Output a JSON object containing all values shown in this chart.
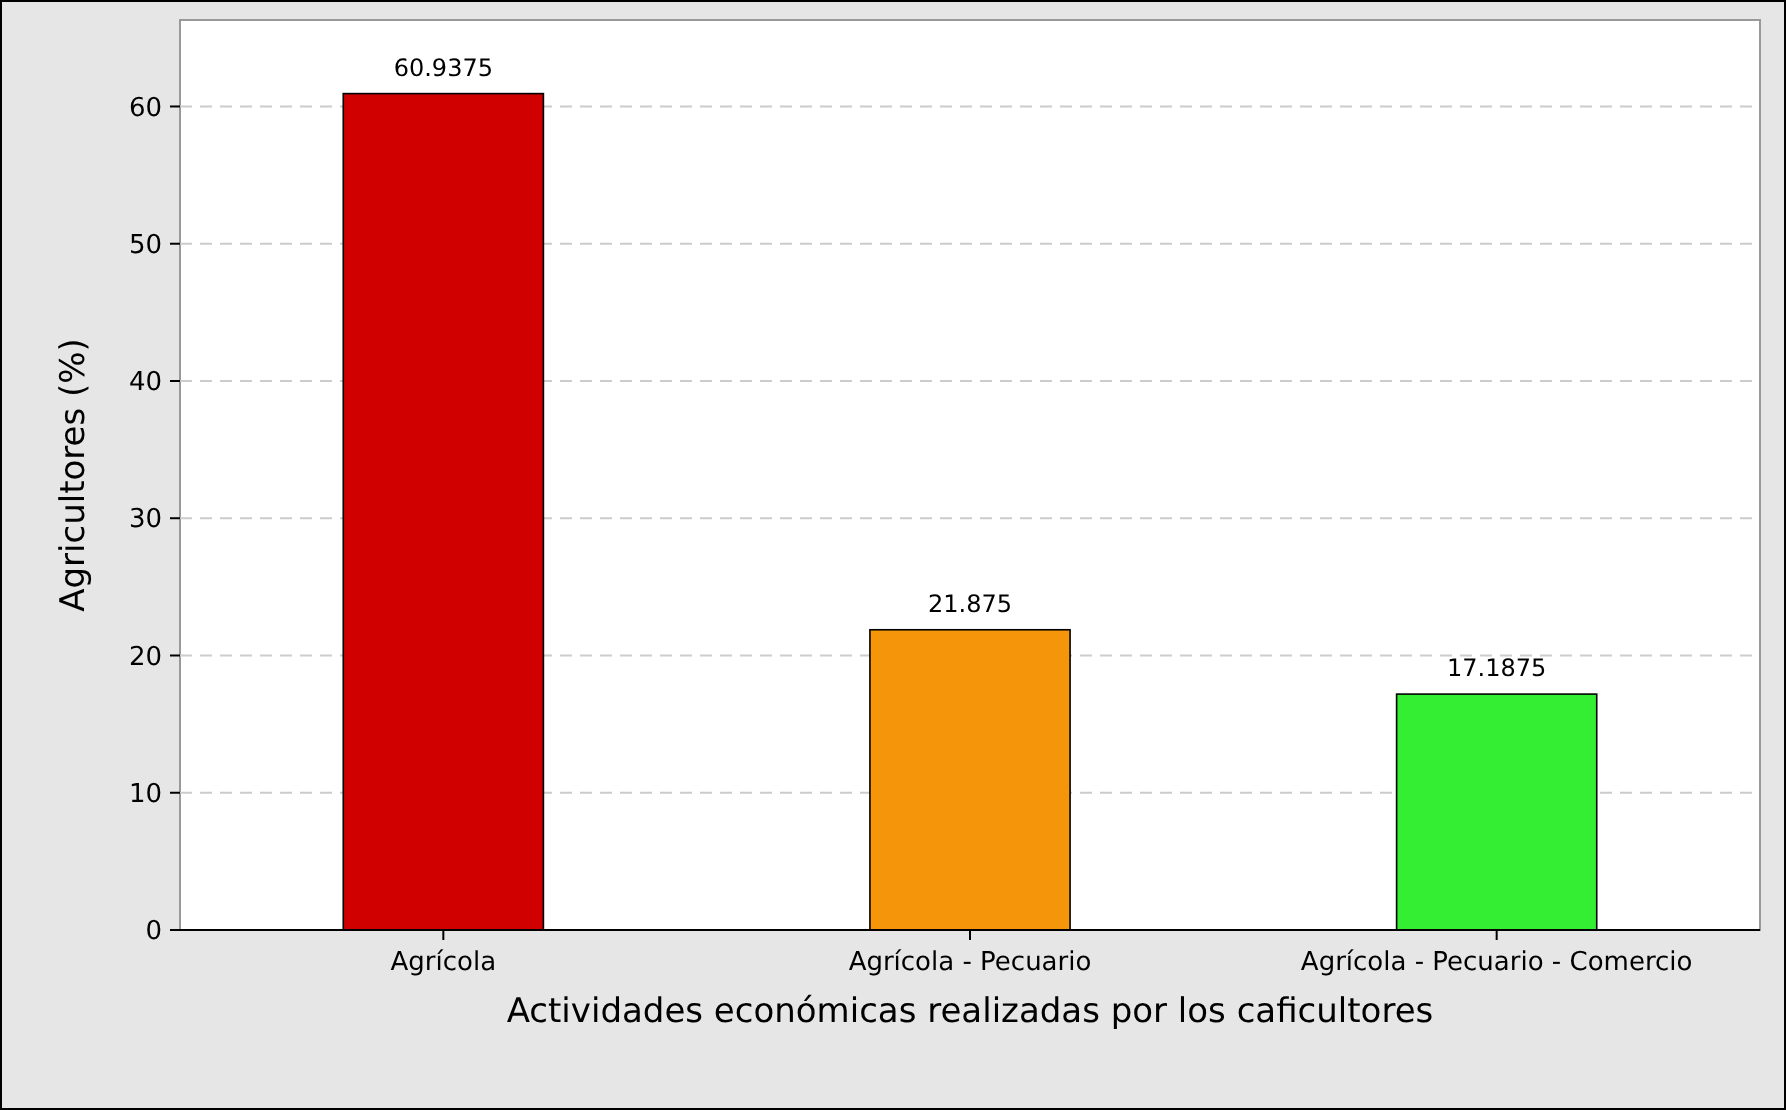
{
  "chart_data": {
    "type": "bar",
    "xlabel": "Actividades económicas realizadas por los caficultores",
    "ylabel": "Agricultores (%)",
    "categories": [
      "Agrícola",
      "Agrícola - Pecuario",
      "Agrícola - Pecuario - Comercio"
    ],
    "values": [
      60.9375,
      21.875,
      17.1875
    ],
    "colors": [
      "#d10000",
      "#f5960a",
      "#33ee33"
    ],
    "ylim": [
      0,
      66.3
    ],
    "yticks": [
      0,
      10,
      20,
      30,
      40,
      50,
      60
    ],
    "grid": "y",
    "data_labels": true
  }
}
